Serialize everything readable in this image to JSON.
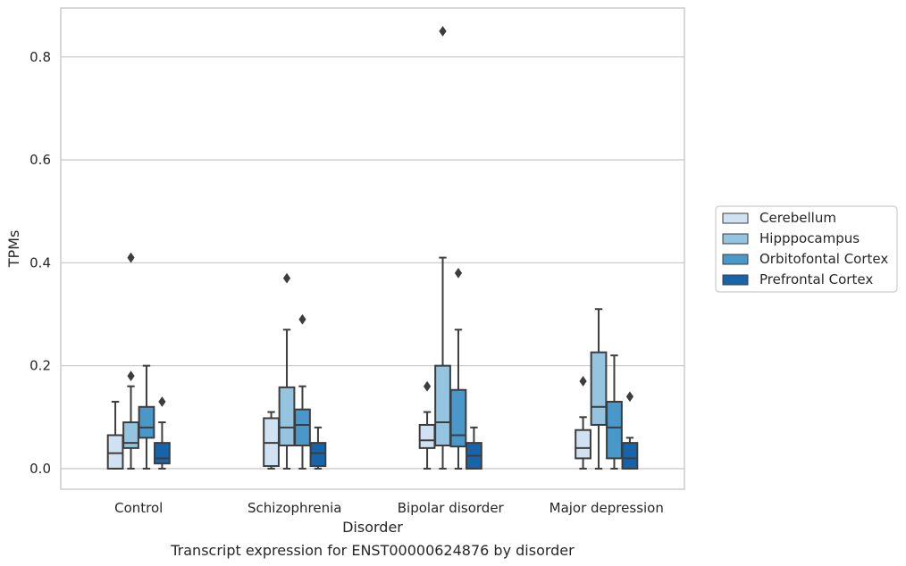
{
  "caption": "Transcript expression for ENST00000624876 by disorder",
  "chart_data": {
    "type": "box",
    "xlabel": "Disorder",
    "ylabel": "TPMs",
    "ylim": [
      -0.04,
      0.895
    ],
    "yticks": [
      0.0,
      0.2,
      0.4,
      0.6,
      0.8
    ],
    "ytick_labels": [
      "0.0",
      "0.2",
      "0.4",
      "0.6",
      "0.8"
    ],
    "grid": "horizontal",
    "legend_position": "right",
    "categories": [
      "Control",
      "Schizophrenia",
      "Bipolar disorder",
      "Major depression"
    ],
    "series": [
      {
        "name": "Cerebellum",
        "color": "#d0e1f2",
        "boxes": [
          {
            "whislo": 0.0,
            "q1": 0.0,
            "med": 0.03,
            "q3": 0.065,
            "whishi": 0.13,
            "fliers": []
          },
          {
            "whislo": 0.0,
            "q1": 0.005,
            "med": 0.05,
            "q3": 0.098,
            "whishi": 0.11,
            "fliers": []
          },
          {
            "whislo": 0.0,
            "q1": 0.04,
            "med": 0.055,
            "q3": 0.085,
            "whishi": 0.11,
            "fliers": [
              0.16
            ]
          },
          {
            "whislo": 0.0,
            "q1": 0.02,
            "med": 0.04,
            "q3": 0.075,
            "whishi": 0.1,
            "fliers": [
              0.17
            ]
          }
        ]
      },
      {
        "name": "Hipppocampus",
        "color": "#94c4df",
        "boxes": [
          {
            "whislo": 0.0,
            "q1": 0.04,
            "med": 0.05,
            "q3": 0.09,
            "whishi": 0.16,
            "fliers": [
              0.18,
              0.41
            ]
          },
          {
            "whislo": 0.0,
            "q1": 0.045,
            "med": 0.08,
            "q3": 0.158,
            "whishi": 0.27,
            "fliers": [
              0.37
            ]
          },
          {
            "whislo": 0.0,
            "q1": 0.045,
            "med": 0.09,
            "q3": 0.2,
            "whishi": 0.41,
            "fliers": [
              0.85
            ]
          },
          {
            "whislo": 0.0,
            "q1": 0.085,
            "med": 0.12,
            "q3": 0.226,
            "whishi": 0.31,
            "fliers": []
          }
        ]
      },
      {
        "name": "Orbitofontal Cortex",
        "color": "#4a98c9",
        "boxes": [
          {
            "whislo": 0.0,
            "q1": 0.06,
            "med": 0.08,
            "q3": 0.12,
            "whishi": 0.2,
            "fliers": []
          },
          {
            "whislo": 0.0,
            "q1": 0.045,
            "med": 0.085,
            "q3": 0.115,
            "whishi": 0.16,
            "fliers": [
              0.29
            ]
          },
          {
            "whislo": 0.0,
            "q1": 0.043,
            "med": 0.065,
            "q3": 0.153,
            "whishi": 0.27,
            "fliers": [
              0.38
            ]
          },
          {
            "whislo": 0.0,
            "q1": 0.02,
            "med": 0.08,
            "q3": 0.13,
            "whishi": 0.22,
            "fliers": []
          }
        ]
      },
      {
        "name": "Prefrontal Cortex",
        "color": "#1764ab",
        "boxes": [
          {
            "whislo": 0.0,
            "q1": 0.01,
            "med": 0.02,
            "q3": 0.05,
            "whishi": 0.09,
            "fliers": [
              0.13
            ]
          },
          {
            "whislo": 0.0,
            "q1": 0.005,
            "med": 0.03,
            "q3": 0.05,
            "whishi": 0.08,
            "fliers": []
          },
          {
            "whislo": 0.0,
            "q1": 0.0,
            "med": 0.025,
            "q3": 0.05,
            "whishi": 0.08,
            "fliers": []
          },
          {
            "whislo": 0.0,
            "q1": 0.0,
            "med": 0.02,
            "q3": 0.05,
            "whishi": 0.06,
            "fliers": [
              0.14
            ]
          }
        ]
      }
    ]
  }
}
